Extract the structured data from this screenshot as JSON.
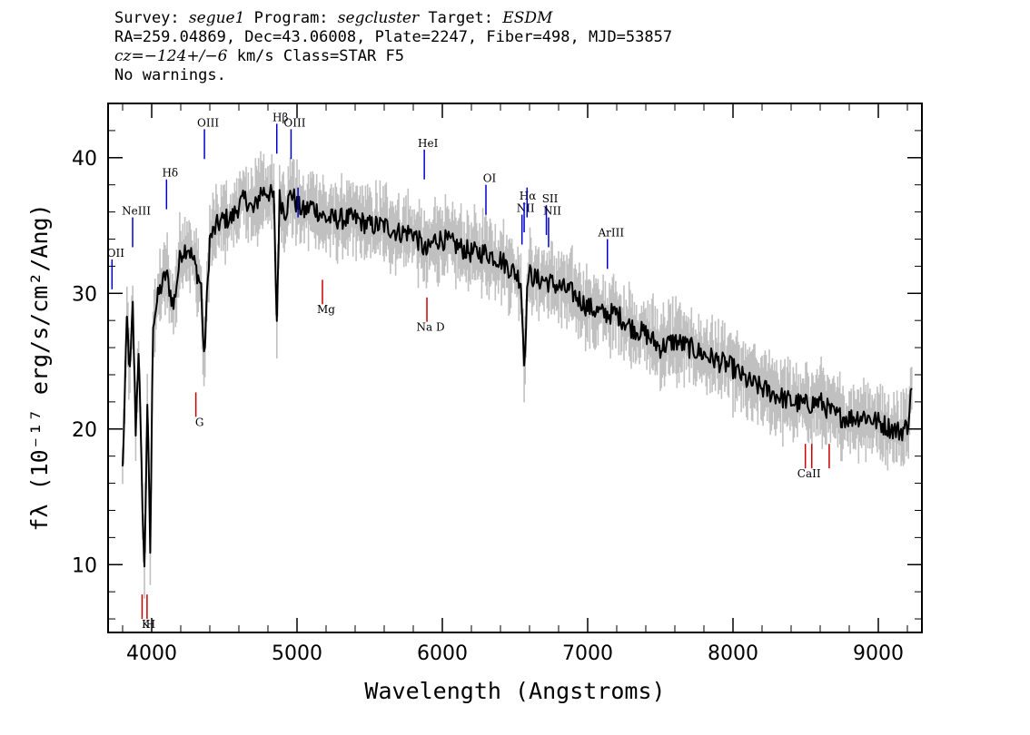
{
  "header": {
    "survey_label": "Survey:",
    "survey": "segue1",
    "program_label": "Program:",
    "program": "segcluster",
    "target_label": "Target:",
    "target": "ESDM",
    "line2": "RA=259.04869, Dec=43.06008, Plate=2247, Fiber=498, MJD=53857",
    "cz_label": "cz=",
    "cz_value": "−124+/−6",
    "cz_rest": " km/s Class=STAR F5",
    "warnings": "No warnings."
  },
  "colors": {
    "spectrum": "#000000",
    "error_band": "#c0c0c0",
    "emission_line": "#0000cc",
    "absorption_line": "#cc0000"
  },
  "chart_data": {
    "type": "line",
    "xlabel": "Wavelength (Angstroms)",
    "ylabel": "fλ (10⁻¹⁷ erg/s/cm²/Ang)",
    "xlim": [
      3700,
      9300
    ],
    "ylim": [
      5,
      44
    ],
    "x_ticks": [
      4000,
      5000,
      6000,
      7000,
      8000,
      9000
    ],
    "y_ticks": [
      10,
      20,
      30,
      40
    ],
    "spectrum": {
      "x": [
        3800,
        3830,
        3850,
        3870,
        3890,
        3910,
        3930,
        3950,
        3970,
        3990,
        4010,
        4050,
        4100,
        4150,
        4200,
        4250,
        4300,
        4340,
        4360,
        4400,
        4450,
        4500,
        4550,
        4600,
        4650,
        4700,
        4750,
        4800,
        4840,
        4861,
        4880,
        4920,
        4960,
        5000,
        5050,
        5100,
        5150,
        5200,
        5300,
        5400,
        5500,
        5600,
        5700,
        5800,
        5890,
        5950,
        6000,
        6100,
        6200,
        6300,
        6400,
        6500,
        6540,
        6563,
        6590,
        6650,
        6700,
        6800,
        6900,
        7000,
        7100,
        7200,
        7300,
        7400,
        7500,
        7600,
        7700,
        7800,
        7900,
        8000,
        8100,
        8200,
        8300,
        8400,
        8500,
        8600,
        8700,
        8800,
        8900,
        9000,
        9100,
        9150,
        9200,
        9230
      ],
      "y": [
        17.0,
        28.0,
        24.0,
        29.0,
        20.0,
        26.0,
        17.0,
        9.5,
        22.0,
        11.0,
        28.0,
        30.0,
        31.5,
        29.0,
        33.0,
        33.5,
        32.0,
        30.5,
        25.0,
        34.0,
        35.0,
        35.5,
        35.5,
        36.5,
        37.0,
        36.0,
        37.5,
        37.5,
        37.0,
        28.0,
        37.0,
        36.0,
        37.5,
        36.5,
        36.0,
        36.5,
        36.0,
        35.5,
        35.5,
        35.5,
        35.0,
        35.0,
        34.5,
        34.5,
        33.0,
        34.0,
        34.0,
        33.5,
        33.0,
        33.0,
        32.5,
        31.5,
        31.0,
        24.8,
        31.5,
        31.0,
        31.0,
        30.5,
        30.0,
        29.0,
        28.5,
        28.5,
        27.5,
        27.0,
        26.0,
        26.5,
        26.0,
        25.5,
        25.0,
        24.5,
        23.5,
        23.0,
        22.5,
        22.0,
        21.8,
        22.0,
        21.0,
        20.8,
        21.0,
        20.5,
        20.0,
        19.8,
        20.2,
        23.0
      ]
    },
    "error_band_halfwidth": 1.6,
    "line_markers": [
      {
        "name": "OII",
        "wavelength": 3727,
        "kind": "emission",
        "label_y": 32.7
      },
      {
        "name": "NeIII",
        "wavelength": 3869,
        "kind": "emission",
        "label_y": 35.8
      },
      {
        "name": "Hδ",
        "wavelength": 4102,
        "kind": "emission",
        "label_y": 38.6
      },
      {
        "name": "OIII",
        "wavelength": 4363,
        "kind": "emission",
        "label_y": 42.3
      },
      {
        "name": "Hβ",
        "wavelength": 4861,
        "kind": "emission",
        "label_y": 42.7
      },
      {
        "name": "OIII",
        "wavelength": 4959,
        "kind": "emission",
        "label_y": 42.3
      },
      {
        "name": "OIII",
        "wavelength": 5007,
        "kind": "emission",
        "label_y": 0
      },
      {
        "name": "HeI",
        "wavelength": 5876,
        "kind": "emission",
        "label_y": 40.8
      },
      {
        "name": "OI",
        "wavelength": 6300,
        "kind": "emission",
        "label_y": 38.2
      },
      {
        "name": "NII",
        "wavelength": 6548,
        "kind": "emission",
        "label_y": 36.0
      },
      {
        "name": "Hα",
        "wavelength": 6563,
        "kind": "emission",
        "label_y": 36.9
      },
      {
        "name": "NII",
        "wavelength": 6583,
        "kind": "emission",
        "label_y": 0
      },
      {
        "name": "SII",
        "wavelength": 6716,
        "kind": "emission",
        "label_y": 36.7
      },
      {
        "name": "NII",
        "wavelength": 6731,
        "kind": "emission",
        "label_y": 35.8
      },
      {
        "name": "ArIII",
        "wavelength": 7136,
        "kind": "emission",
        "label_y": 34.2
      },
      {
        "name": "K",
        "wavelength": 3934,
        "kind": "absorption",
        "label_y": 5.6
      },
      {
        "name": "H",
        "wavelength": 3968,
        "kind": "absorption",
        "label_y": 5.6
      },
      {
        "name": "G",
        "wavelength": 4304,
        "kind": "absorption",
        "label_y": 20.5
      },
      {
        "name": "Mg",
        "wavelength": 5175,
        "kind": "absorption",
        "label_y": 28.8
      },
      {
        "name": "Na D",
        "wavelength": 5894,
        "kind": "absorption",
        "label_y": 27.5
      },
      {
        "name": "CaII",
        "wavelength": 8498,
        "kind": "absorption",
        "label_y": 16.7
      },
      {
        "name": "CaII",
        "wavelength": 8542,
        "kind": "absorption",
        "label_y": 0
      },
      {
        "name": "CaII",
        "wavelength": 8662,
        "kind": "absorption",
        "label_y": 0
      }
    ]
  }
}
